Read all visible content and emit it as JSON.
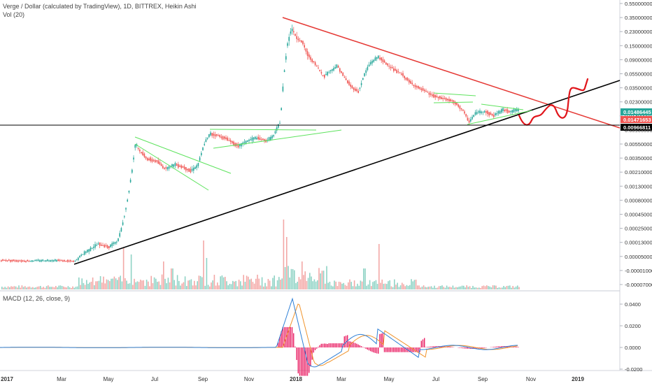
{
  "header": {
    "title": "Verge / Dollar (calculated by TradingView), 1D, BITTREX, Heikin Ashi",
    "volume_label": "Vol (20)"
  },
  "macd": {
    "label": "MACD (12, 26, close, 9)",
    "ticks": [
      "0.0400",
      "0.0200",
      "0.0000",
      "-0.0200"
    ],
    "signal_color": "#f0932b",
    "macd_color": "#2d7fd6",
    "hist_color": "#e91e63"
  },
  "price_axis": {
    "ticks": [
      "0.55000000",
      "0.35000000",
      "0.23000000",
      "0.15000000",
      "0.09000000",
      "0.05500000",
      "0.03500000",
      "0.02300000",
      "0.01400000",
      "0.00900000",
      "0.00550000",
      "0.00350000",
      "0.00210000",
      "0.00130000",
      "0.00080000",
      "0.00045000",
      "0.00025000",
      "0.00013000",
      "0.00005000",
      "-0.00001000",
      "-0.00007000"
    ],
    "badges": [
      {
        "label": "0.01486445",
        "color": "#26a69a"
      },
      {
        "label": "0.01471653",
        "color": "#ef5350"
      },
      {
        "label": "0.00966811",
        "color": "#000000"
      }
    ]
  },
  "time_axis": {
    "labels": [
      "2017",
      "Mar",
      "May",
      "Jul",
      "Sep",
      "Nov",
      "2018",
      "Mar",
      "May",
      "Jul",
      "Sep",
      "Nov",
      "2019"
    ]
  },
  "colors": {
    "up": "#26a69a",
    "down": "#ef5350",
    "trend_red": "#e53935",
    "trend_black": "#000000",
    "pattern_green": "#5ee35e",
    "volume_up": "#8fd3c5",
    "volume_down": "#f3a8a6"
  },
  "chart_data": {
    "type": "line",
    "title": "Verge / Dollar (calculated by TradingView), 1D, BITTREX, Heikin Ashi",
    "scale": "log",
    "x": [
      "2017-01",
      "2017-02",
      "2017-03",
      "2017-04",
      "2017-05",
      "2017-06",
      "2017-07",
      "2017-08",
      "2017-09",
      "2017-10",
      "2017-11",
      "2017-12",
      "2018-01",
      "2018-02",
      "2018-03",
      "2018-04",
      "2018-05",
      "2018-06",
      "2018-07",
      "2018-08",
      "2018-09",
      "2018-10"
    ],
    "series": [
      {
        "values": [
          4e-05,
          4e-05,
          4e-05,
          0.00012,
          0.0002,
          0.0045,
          0.0025,
          0.003,
          0.0062,
          0.0055,
          0.0055,
          0.012,
          0.22,
          0.12,
          0.06,
          0.075,
          0.05,
          0.03,
          0.025,
          0.016,
          0.0155,
          0.0148
        ]
      }
    ],
    "last_values": [
      0.01486445,
      0.01471653,
      0.00966811
    ]
  }
}
